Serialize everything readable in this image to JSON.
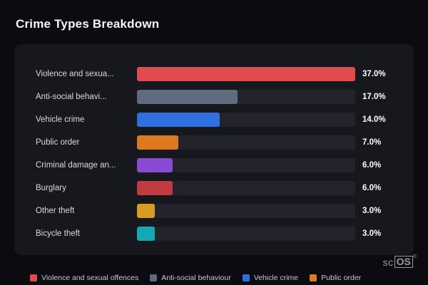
{
  "title": "Crime Types Breakdown",
  "watermark": {
    "prefix": "sc",
    "box": "OS",
    "reg": "®"
  },
  "max_value": 37.0,
  "chart_data": {
    "type": "bar",
    "orientation": "horizontal",
    "title": "Crime Types Breakdown",
    "categories": [
      "Violence and sexual offences",
      "Anti-social behaviour",
      "Vehicle crime",
      "Public order",
      "Criminal damage an...",
      "Burglary",
      "Other theft",
      "Bicycle theft"
    ],
    "values": [
      37.0,
      17.0,
      14.0,
      7.0,
      6.0,
      6.0,
      3.0,
      3.0
    ],
    "value_labels": [
      "37.0%",
      "17.0%",
      "14.0%",
      "7.0%",
      "6.0%",
      "6.0%",
      "3.0%",
      "3.0%"
    ],
    "unit": "%",
    "xlim": [
      0,
      37
    ],
    "bar_colors": [
      "#e14b50",
      "#5f6c80",
      "#2f6fe0",
      "#dd7a1f",
      "#8a4bd4",
      "#c23b40",
      "#d79c20",
      "#12a8b4"
    ],
    "grid": false,
    "legend_position": "bottom"
  },
  "rows": [
    {
      "label": "Violence and sexua...",
      "value": 37.0,
      "value_label": "37.0%",
      "color": "#e14b50"
    },
    {
      "label": "Anti-social behavi...",
      "value": 17.0,
      "value_label": "17.0%",
      "color": "#5f6c80"
    },
    {
      "label": "Vehicle crime",
      "value": 14.0,
      "value_label": "14.0%",
      "color": "#2f6fe0"
    },
    {
      "label": "Public order",
      "value": 7.0,
      "value_label": "7.0%",
      "color": "#dd7a1f"
    },
    {
      "label": "Criminal damage an...",
      "value": 6.0,
      "value_label": "6.0%",
      "color": "#8a4bd4"
    },
    {
      "label": "Burglary",
      "value": 6.0,
      "value_label": "6.0%",
      "color": "#c23b40"
    },
    {
      "label": "Other theft",
      "value": 3.0,
      "value_label": "3.0%",
      "color": "#d79c20"
    },
    {
      "label": "Bicycle theft",
      "value": 3.0,
      "value_label": "3.0%",
      "color": "#12a8b4"
    }
  ],
  "legend": [
    {
      "label": "Violence and sexual offences",
      "color": "#e14b50"
    },
    {
      "label": "Anti-social behaviour",
      "color": "#5f6c80"
    },
    {
      "label": "Vehicle crime",
      "color": "#2f6fe0"
    },
    {
      "label": "Public order",
      "color": "#dd7a1f"
    }
  ]
}
